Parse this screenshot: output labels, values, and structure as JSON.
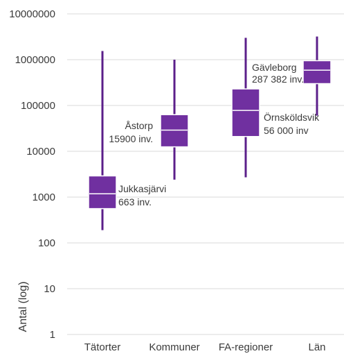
{
  "chart_data": {
    "type": "boxplot",
    "title": "",
    "ylabel": "Antal (log)",
    "xlabel": "",
    "y_scale": "log",
    "ylim": [
      1,
      10000000
    ],
    "y_ticks": [
      "10000000",
      "1000000",
      "100000",
      "10000",
      "1000",
      "100",
      "10",
      "1"
    ],
    "y_tick_values": [
      10000000,
      1000000,
      100000,
      10000,
      1000,
      100,
      10,
      1
    ],
    "grid": true,
    "categories": [
      "Tätorter",
      "Kommuner",
      "FA-regioner",
      "Län"
    ],
    "boxes": [
      {
        "category": "Tätorter",
        "min": 190,
        "q1": 560,
        "median": 1180,
        "q3": 2900,
        "max": 1550000
      },
      {
        "category": "Kommuner",
        "min": 2400,
        "q1": 12500,
        "median": 29000,
        "q3": 63000,
        "max": 1000000
      },
      {
        "category": "FA-regioner",
        "min": 2700,
        "q1": 21000,
        "median": 78000,
        "q3": 230000,
        "max": 3000000
      },
      {
        "category": "Län",
        "min": 60000,
        "q1": 300000,
        "median": 590000,
        "q3": 950000,
        "max": 3200000
      }
    ],
    "annotations": [
      {
        "category": "Tätorter",
        "lines": [
          "Jukkasjärvi",
          "663 inv."
        ]
      },
      {
        "category": "Kommuner",
        "lines": [
          "Åstorp",
          "15900 inv."
        ]
      },
      {
        "category": "FA-regioner",
        "lines": [
          "Örnsköldsvik",
          "56 000 inv"
        ]
      },
      {
        "category": "Län",
        "lines": [
          "Gävleborg",
          "287 382 inv."
        ]
      }
    ],
    "colors": {
      "box_fill": "#7030a0",
      "box_edge": "#ffffff",
      "whisker": "#5b1f8a",
      "median": "#ffffff"
    }
  }
}
